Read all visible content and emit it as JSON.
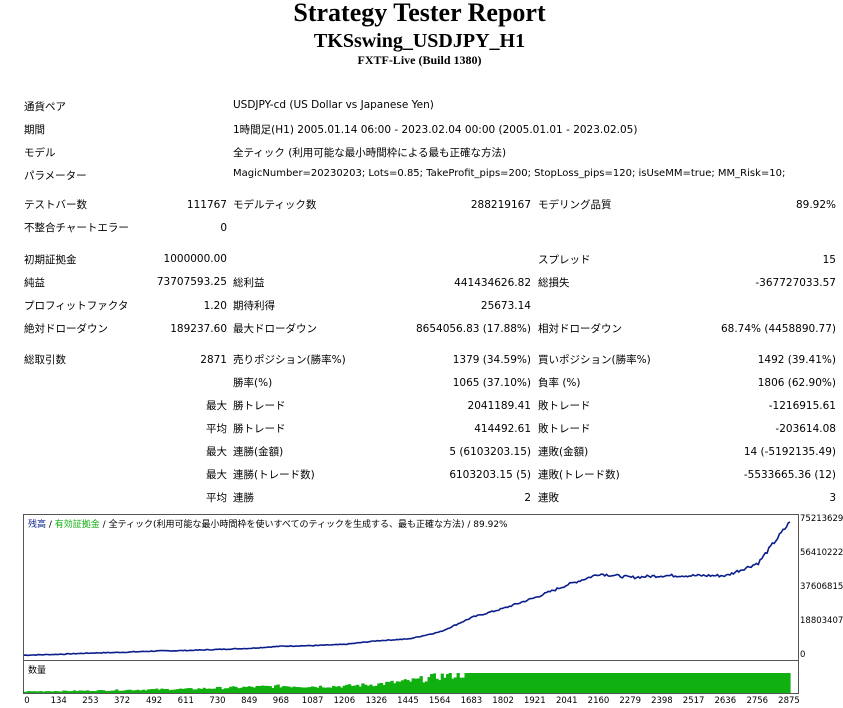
{
  "header": {
    "title": "Strategy Tester Report",
    "subtitle": "TKSswing_USDJPY_H1",
    "build": "FXTF-Live (Build 1380)"
  },
  "info": [
    {
      "label": "通貨ペア",
      "value": "USDJPY-cd (US Dollar vs Japanese Yen)"
    },
    {
      "label": "期間",
      "value": "1時間足(H1) 2005.01.14 06:00 - 2023.02.04 00:00 (2005.01.01 - 2023.02.05)"
    },
    {
      "label": "モデル",
      "value": "全ティック (利用可能な最小時間枠による最も正確な方法)"
    },
    {
      "label": "パラメーター",
      "value": "MagicNumber=20230203; Lots=0.85; TakeProfit_pips=200; StopLoss_pips=120; isUseMM=true; MM_Risk=10;"
    }
  ],
  "stats": {
    "bars_label": "テストバー数",
    "bars": "111767",
    "ticks_label": "モデルティック数",
    "ticks": "288219167",
    "quality_label": "モデリング品質",
    "quality": "89.92%",
    "mismatch_label": "不整合チャートエラー",
    "mismatch": "0",
    "deposit_label": "初期証拠金",
    "deposit": "1000000.00",
    "spread_label": "スプレッド",
    "spread": "15",
    "net_label": "純益",
    "net": "73707593.25",
    "gross_profit_label": "総利益",
    "gross_profit": "441434626.82",
    "gross_loss_label": "総損失",
    "gross_loss": "-367727033.57",
    "pf_label": "プロフィットファクタ",
    "pf": "1.20",
    "expected_label": "期待利得",
    "expected": "25673.14",
    "abs_dd_label": "絶対ドローダウン",
    "abs_dd": "189237.60",
    "max_dd_label": "最大ドローダウン",
    "max_dd": "8654056.83 (17.88%)",
    "rel_dd_label": "相対ドローダウン",
    "rel_dd": "68.74% (4458890.77)",
    "total_trades_label": "総取引数",
    "total_trades": "2871",
    "short_label": "売りポジション(勝率%)",
    "short": "1379 (34.59%)",
    "long_label": "買いポジション(勝率%)",
    "long": "1492 (39.41%)",
    "win_rate_label": "勝率(%)",
    "win_rate": "1065 (37.10%)",
    "loss_rate_label": "負率 (%)",
    "loss_rate": "1806 (62.90%)",
    "max_prefix": "最大",
    "avg_prefix": "平均",
    "max_win_label": "勝トレード",
    "max_win": "2041189.41",
    "max_loss_label": "敗トレード",
    "max_loss": "-1216915.61",
    "avg_win_label": "勝トレード",
    "avg_win": "414492.61",
    "avg_loss_label": "敗トレード",
    "avg_loss": "-203614.08",
    "max_cons_wins_label": "連勝(金額)",
    "max_cons_wins": "5 (6103203.15)",
    "max_cons_losses_label": "連敗(金額)",
    "max_cons_losses": "14 (-5192135.49)",
    "max_cons_profit_label": "連勝(トレード数)",
    "max_cons_profit": "6103203.15 (5)",
    "max_cons_loss_label": "連敗(トレード数)",
    "max_cons_loss": "-5533665.36 (12)",
    "avg_cons_wins_label": "連勝",
    "avg_cons_wins": "2",
    "avg_cons_losses_label": "連敗",
    "avg_cons_losses": "3"
  },
  "chart_data": {
    "type": "line",
    "legend": [
      "残高",
      "有効証拠金",
      "全ティック(利用可能な最小時間枠を使いすべてのティックを生成する、最も正確な方法)",
      "89.92%"
    ],
    "x_ticks": [
      "0",
      "134",
      "253",
      "372",
      "492",
      "611",
      "730",
      "849",
      "968",
      "1087",
      "1206",
      "1326",
      "1445",
      "1564",
      "1683",
      "1802",
      "1921",
      "2041",
      "2160",
      "2279",
      "2398",
      "2517",
      "2636",
      "2756",
      "2875"
    ],
    "y_ticks": [
      "75213629",
      "56410222",
      "37606815",
      "18803407",
      "0"
    ],
    "ylim": [
      0,
      75213629
    ],
    "xlim": [
      0,
      2875
    ],
    "x": [
      0,
      134,
      253,
      372,
      492,
      611,
      730,
      849,
      968,
      1087,
      1206,
      1326,
      1445,
      1564,
      1683,
      1802,
      1921,
      2041,
      2160,
      2279,
      2398,
      2517,
      2636,
      2756,
      2875
    ],
    "series": [
      {
        "name": "残高",
        "values": [
          1000000,
          1500000,
          2200000,
          2600000,
          3300000,
          3600000,
          4200000,
          4800000,
          6000000,
          6300000,
          7000000,
          9000000,
          10000000,
          14000000,
          22000000,
          27000000,
          33000000,
          40000000,
          46000000,
          44000000,
          45000000,
          45000000,
          45000000,
          52000000,
          74700000
        ]
      }
    ],
    "volume_label": "数量",
    "volume_x": [
      0,
      134,
      253,
      372,
      492,
      611,
      730,
      849,
      968,
      1087,
      1206,
      1326,
      1445,
      1564,
      1683,
      1802,
      1921,
      2041,
      2160,
      2279,
      2398,
      2517,
      2636,
      2756,
      2875
    ],
    "volume": [
      0.08,
      0.1,
      0.12,
      0.15,
      0.18,
      0.2,
      0.25,
      0.3,
      0.35,
      0.33,
      0.35,
      0.45,
      0.6,
      0.85,
      1,
      1,
      1,
      1,
      1,
      1,
      1,
      1,
      1,
      1,
      1
    ]
  },
  "colors": {
    "line": "#0a1e8c",
    "volume": "#10b010"
  }
}
